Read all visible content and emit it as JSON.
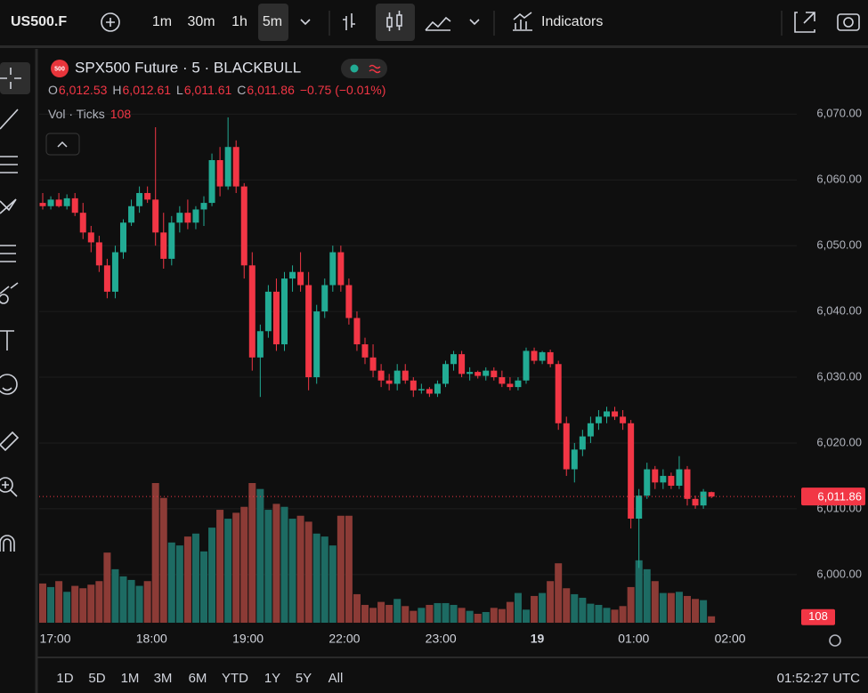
{
  "toolbar": {
    "symbol": "US500.F",
    "intervals": [
      "1m",
      "30m",
      "1h",
      "5m"
    ],
    "indicators": "Indicators"
  },
  "legend": {
    "badge": "500",
    "title": "SPX500 Future · 5 · BLACKBULL",
    "ohlc": [
      [
        "O",
        "6,012.53"
      ],
      [
        "H",
        "6,012.61"
      ],
      [
        "L",
        "6,011.61"
      ],
      [
        "C",
        "6,011.86"
      ]
    ],
    "change": "−0.75 (−0.01%)",
    "volume_title": "Vol · Ticks"
  },
  "chart_data": {
    "type": "candlestick",
    "candles": [
      [
        6056.5,
        6058,
        6055.5,
        6056
      ],
      [
        6056,
        6057.5,
        6055.5,
        6057
      ],
      [
        6057,
        6058,
        6055.8,
        6056
      ],
      [
        6056,
        6057.8,
        6055.5,
        6057.2
      ],
      [
        6057.2,
        6058,
        6054.5,
        6055
      ],
      [
        6055,
        6056.5,
        6051,
        6052
      ],
      [
        6052,
        6053,
        6049,
        6050.5
      ],
      [
        6050.5,
        6051.5,
        6046,
        6047
      ],
      [
        6047,
        6048,
        6042,
        6043
      ],
      [
        6043,
        6050,
        6042,
        6049
      ],
      [
        6049,
        6054,
        6048,
        6053.5
      ],
      [
        6053.5,
        6057,
        6053,
        6056
      ],
      [
        6056,
        6059,
        6055,
        6058
      ],
      [
        6058,
        6059,
        6056.5,
        6057
      ],
      [
        6057,
        6068,
        6050,
        6052
      ],
      [
        6052,
        6055,
        6046.5,
        6048
      ],
      [
        6048,
        6054.5,
        6047,
        6053.5
      ],
      [
        6053.5,
        6056,
        6052,
        6055
      ],
      [
        6055,
        6057,
        6052.5,
        6053.5
      ],
      [
        6053.5,
        6056,
        6052.5,
        6055.5
      ],
      [
        6055.5,
        6057.5,
        6053,
        6056.5
      ],
      [
        6056.5,
        6064,
        6056,
        6063
      ],
      [
        6063,
        6065,
        6057.5,
        6059
      ],
      [
        6059,
        6069.5,
        6058.5,
        6065
      ],
      [
        6065,
        6066,
        6058,
        6059
      ],
      [
        6059,
        6059.5,
        6045,
        6047
      ],
      [
        6047,
        6049,
        6031,
        6033
      ],
      [
        6033,
        6038,
        6027,
        6037
      ],
      [
        6037,
        6044,
        6036,
        6043
      ],
      [
        6043,
        6045,
        6034,
        6035
      ],
      [
        6035,
        6046,
        6034,
        6045
      ],
      [
        6045,
        6047,
        6043,
        6046
      ],
      [
        6046,
        6049,
        6043,
        6044
      ],
      [
        6044,
        6046,
        6028,
        6030
      ],
      [
        6030,
        6041,
        6029,
        6040
      ],
      [
        6040,
        6045,
        6039,
        6044
      ],
      [
        6044,
        6050,
        6043,
        6049
      ],
      [
        6049,
        6050,
        6043,
        6044
      ],
      [
        6044,
        6045,
        6038,
        6039
      ],
      [
        6039,
        6040,
        6034,
        6035
      ],
      [
        6035,
        6036,
        6032,
        6033
      ],
      [
        6033,
        6035,
        6030,
        6031
      ],
      [
        6031,
        6032,
        6028.5,
        6029.5
      ],
      [
        6029.5,
        6030.5,
        6028,
        6029
      ],
      [
        6029,
        6032,
        6028,
        6031
      ],
      [
        6031,
        6032,
        6029,
        6029.5
      ],
      [
        6029.5,
        6030,
        6027,
        6028
      ],
      [
        6028,
        6029,
        6027.5,
        6028.2
      ],
      [
        6028.2,
        6028.5,
        6027,
        6027.5
      ],
      [
        6027.5,
        6029.5,
        6027,
        6029
      ],
      [
        6029,
        6032.5,
        6028.5,
        6032
      ],
      [
        6032,
        6034,
        6031,
        6033.5
      ],
      [
        6033.5,
        6034,
        6030,
        6030.5
      ],
      [
        6030.5,
        6031.5,
        6029.5,
        6030.8
      ],
      [
        6030.8,
        6031,
        6029.8,
        6030.2
      ],
      [
        6030.2,
        6031.5,
        6029.5,
        6031
      ],
      [
        6031,
        6031.5,
        6029.5,
        6030
      ],
      [
        6030,
        6031,
        6028.5,
        6029
      ],
      [
        6029,
        6030,
        6028,
        6028.5
      ],
      [
        6028.5,
        6030,
        6028,
        6029.5
      ],
      [
        6029.5,
        6034.5,
        6029,
        6034
      ],
      [
        6034,
        6034.5,
        6032,
        6032.5
      ],
      [
        6032.5,
        6034,
        6032,
        6033.8
      ],
      [
        6033.8,
        6034.2,
        6031.5,
        6032
      ],
      [
        6032,
        6032.5,
        6022,
        6023
      ],
      [
        6023,
        6024,
        6015,
        6016
      ],
      [
        6016,
        6020,
        6014,
        6019
      ],
      [
        6019,
        6022,
        6018,
        6021
      ],
      [
        6021,
        6024,
        6020,
        6023
      ],
      [
        6023,
        6025,
        6022,
        6024
      ],
      [
        6024,
        6025.5,
        6023,
        6024.8
      ],
      [
        6024.8,
        6025.5,
        6023.5,
        6024
      ],
      [
        6024,
        6025,
        6022,
        6023
      ],
      [
        6023,
        6023.5,
        6007,
        6008.5
      ],
      [
        6008.5,
        6013,
        6001,
        6012
      ],
      [
        6012,
        6017,
        6011.5,
        6016
      ],
      [
        6016,
        6016.5,
        6013,
        6014
      ],
      [
        6014,
        6016,
        6013,
        6015
      ],
      [
        6015,
        6015.5,
        6013,
        6013.5
      ],
      [
        6013.5,
        6018,
        6013,
        6016
      ],
      [
        6016,
        6016.5,
        6010.5,
        6011.5
      ],
      [
        6011.5,
        6012,
        6010,
        6010.5
      ],
      [
        6010.5,
        6013,
        6010,
        6012.61
      ],
      [
        6012.53,
        6012.61,
        6011.61,
        6011.86
      ]
    ],
    "volumes": [
      660,
      600,
      700,
      520,
      620,
      580,
      640,
      700,
      1180,
      900,
      780,
      720,
      620,
      700,
      2350,
      2100,
      1350,
      1300,
      1450,
      1500,
      1200,
      1600,
      1900,
      1750,
      1850,
      1950,
      2350,
      2250,
      1900,
      2000,
      1950,
      1750,
      1800,
      1700,
      1500,
      1450,
      1300,
      1800,
      1800,
      480,
      300,
      250,
      350,
      300,
      400,
      280,
      200,
      250,
      300,
      330,
      330,
      300,
      250,
      200,
      150,
      180,
      250,
      230,
      350,
      500,
      220,
      450,
      500,
      700,
      1000,
      580,
      480,
      420,
      320,
      300,
      250,
      220,
      280,
      600,
      1050,
      900,
      700,
      500,
      500,
      520,
      450,
      400,
      380,
      108
    ],
    "up_color": "#22ab94",
    "down_color": "#f23645",
    "volume_up_color": "#1d6b63",
    "volume_down_color": "#8c3b36",
    "ylim": [
      5992,
      6079.5
    ],
    "yticks": [
      {
        "value": 6000,
        "label": "6,000.00"
      },
      {
        "value": 6010,
        "label": "6,010.00"
      },
      {
        "value": 6020,
        "label": "6,020.00"
      },
      {
        "value": 6030,
        "label": "6,030.00"
      },
      {
        "value": 6040,
        "label": "6,040.00"
      },
      {
        "value": 6050,
        "label": "6,050.00"
      },
      {
        "value": 6060,
        "label": "6,060.00"
      },
      {
        "value": 6070,
        "label": "6,070.00"
      }
    ],
    "grid": true,
    "time_labels": [
      "17:00",
      "18:00",
      "19:00",
      "22:00",
      "23:00",
      "19",
      "01:00",
      "02:00"
    ],
    "last_price_label": "6,011.86"
  },
  "footer": {
    "ranges": [
      "1D",
      "5D",
      "1M",
      "3M",
      "6M",
      "YTD",
      "1Y",
      "5Y",
      "All"
    ],
    "clock": "01:52:27 UTC"
  }
}
